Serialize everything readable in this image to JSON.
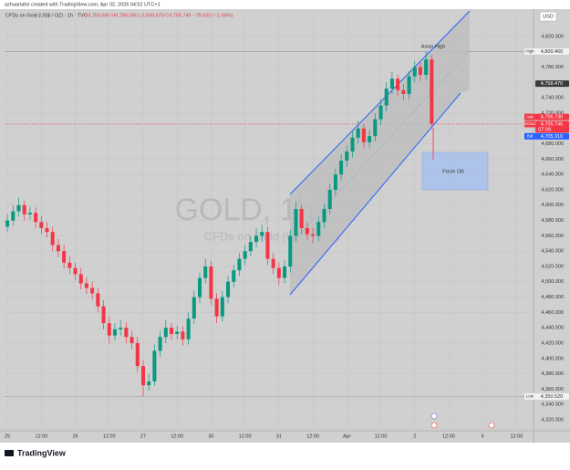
{
  "header": {
    "credit": "azhaartahir created with TradingView.com, Apr 02, 2026 04:52 UTC+1",
    "symbol": "CFDs on Gold (US$ / OZ) · 1h · TVC",
    "ohlc": "O4,784.690 H4,786.580 L4,699.670 C4,705.745 −78.630 (−1.64%)",
    "currency": "USD"
  },
  "footer": {
    "brand": "TradingView"
  },
  "chart_data": {
    "type": "candlestick",
    "watermark": {
      "title": "GOLD, 1h",
      "subtitle": "CFDs on Gold (US$ / OZ)"
    },
    "up_color": "#089981",
    "down_color": "#f23645",
    "open": [
      4572,
      4580,
      4592,
      4600,
      4588,
      4590,
      4578,
      4570,
      4565,
      4548,
      4540,
      4525,
      4518,
      4510,
      4498,
      4492,
      4485,
      4468,
      4446,
      4430,
      4438,
      4440,
      4428,
      4420,
      4390,
      4365,
      4370,
      4410,
      4428,
      4440,
      4432,
      4435,
      4425,
      4452,
      4480,
      4505,
      4520,
      4478,
      4455,
      4480,
      4500,
      4515,
      4530,
      4540,
      4552,
      4560,
      4565,
      4530,
      4518,
      4505,
      4520,
      4560,
      4595,
      4570,
      4562,
      4560,
      4578,
      4595,
      4620,
      4640,
      4658,
      4670,
      4688,
      4700,
      4682,
      4690,
      4712,
      4730,
      4752,
      4765,
      4750,
      4745,
      4768,
      4780,
      4770,
      4790
    ],
    "high": [
      4588,
      4600,
      4610,
      4606,
      4598,
      4597,
      4586,
      4578,
      4572,
      4556,
      4548,
      4533,
      4525,
      4518,
      4506,
      4500,
      4492,
      4476,
      4455,
      4446,
      4450,
      4447,
      4436,
      4428,
      4398,
      4380,
      4418,
      4436,
      4450,
      4446,
      4443,
      4442,
      4460,
      4488,
      4512,
      4530,
      4527,
      4485,
      4488,
      4508,
      4522,
      4538,
      4548,
      4560,
      4570,
      4575,
      4572,
      4538,
      4525,
      4528,
      4568,
      4605,
      4600,
      4578,
      4570,
      4585,
      4602,
      4628,
      4648,
      4666,
      4678,
      4696,
      4710,
      4706,
      4698,
      4720,
      4738,
      4760,
      4774,
      4771,
      4758,
      4775,
      4788,
      4786,
      4800.46,
      4796
    ],
    "low": [
      4565,
      4573,
      4585,
      4580,
      4581,
      4570,
      4562,
      4558,
      4540,
      4532,
      4517,
      4510,
      4502,
      4490,
      4484,
      4477,
      4460,
      4438,
      4420,
      4423,
      4430,
      4420,
      4412,
      4382,
      4350.52,
      4358,
      4364,
      4402,
      4420,
      4424,
      4425,
      4417,
      4418,
      4445,
      4472,
      4498,
      4470,
      4446,
      4448,
      4472,
      4493,
      4508,
      4522,
      4533,
      4545,
      4552,
      4522,
      4510,
      4496,
      4498,
      4512,
      4552,
      4562,
      4555,
      4550,
      4553,
      4570,
      4588,
      4612,
      4632,
      4650,
      4662,
      4680,
      4674,
      4675,
      4683,
      4704,
      4722,
      4745,
      4742,
      4737,
      4738,
      4760,
      4762,
      4763,
      4700
    ],
    "close": [
      4580,
      4592,
      4600,
      4588,
      4590,
      4578,
      4570,
      4565,
      4548,
      4540,
      4525,
      4518,
      4510,
      4498,
      4492,
      4485,
      4468,
      4446,
      4430,
      4438,
      4440,
      4428,
      4420,
      4390,
      4365,
      4370,
      4410,
      4428,
      4440,
      4432,
      4435,
      4425,
      4452,
      4480,
      4505,
      4520,
      4478,
      4455,
      4480,
      4500,
      4515,
      4530,
      4540,
      4552,
      4560,
      4565,
      4530,
      4518,
      4505,
      4520,
      4560,
      4595,
      4570,
      4562,
      4560,
      4578,
      4595,
      4620,
      4640,
      4658,
      4670,
      4688,
      4700,
      4682,
      4690,
      4712,
      4730,
      4752,
      4765,
      4750,
      4745,
      4768,
      4780,
      4770,
      4790,
      4706
    ],
    "xlim": [
      -0.5,
      93
    ],
    "xticks": [
      {
        "value": 0,
        "label": "25"
      },
      {
        "value": 6,
        "label": "12:00"
      },
      {
        "value": 12,
        "label": "26"
      },
      {
        "value": 18,
        "label": "12:00"
      },
      {
        "value": 24,
        "label": "27"
      },
      {
        "value": 30,
        "label": "12:00"
      },
      {
        "value": 36,
        "label": "30"
      },
      {
        "value": 42,
        "label": "12:00"
      },
      {
        "value": 48,
        "label": "31"
      },
      {
        "value": 54,
        "label": "12:00"
      },
      {
        "value": 60,
        "label": "Apr"
      },
      {
        "value": 66,
        "label": "12:00"
      },
      {
        "value": 72,
        "label": "2"
      },
      {
        "value": 78,
        "label": "12:00"
      },
      {
        "value": 84,
        "label": "6"
      },
      {
        "value": 90,
        "label": "12:00"
      }
    ],
    "ylim": [
      4308.1,
      4853.3
    ],
    "yticks": [
      {
        "value": 4320,
        "label": "4,320.000"
      },
      {
        "value": 4340,
        "label": "4,340.000"
      },
      {
        "value": 4360,
        "label": "4,360.000"
      },
      {
        "value": 4380,
        "label": "4,380.000"
      },
      {
        "value": 4400,
        "label": "4,400.000"
      },
      {
        "value": 4420,
        "label": "4,420.000"
      },
      {
        "value": 4440,
        "label": "4,440.000"
      },
      {
        "value": 4460,
        "label": "4,460.000"
      },
      {
        "value": 4480,
        "label": "4,480.000"
      },
      {
        "value": 4500,
        "label": "4,500.000"
      },
      {
        "value": 4520,
        "label": "4,520.000"
      },
      {
        "value": 4540,
        "label": "4,540.000"
      },
      {
        "value": 4560,
        "label": "4,560.000"
      },
      {
        "value": 4580,
        "label": "4,580.000"
      },
      {
        "value": 4600,
        "label": "4,600.000"
      },
      {
        "value": 4620,
        "label": "4,620.000"
      },
      {
        "value": 4640,
        "label": "4,640.000"
      },
      {
        "value": 4660,
        "label": "4,660.000"
      },
      {
        "value": 4680,
        "label": "4,680.000"
      },
      {
        "value": 4700,
        "label": "4,700.000"
      },
      {
        "value": 4720,
        "label": "4,720.000"
      },
      {
        "value": 4740,
        "label": "4,740.000"
      },
      {
        "value": 4760,
        "label": "4,760.000"
      },
      {
        "value": 4780,
        "label": "4,780.000"
      },
      {
        "value": 4800,
        "label": "4,800.000"
      },
      {
        "value": 4820,
        "label": "4,820.000"
      }
    ],
    "grid": true,
    "price_tags": [
      {
        "name": "High",
        "value": 4800.46,
        "label": "4,800.460",
        "color": "#f2f2f2",
        "text_color": "#333333"
      },
      {
        "value": 4758.47,
        "label": "4,758.470",
        "color": "#3a3a3a",
        "text_color": "#ffffff"
      },
      {
        "name": "Ask",
        "value": 4706.73,
        "label": "4,706.730",
        "color": "#f23645",
        "text_color": "#ffffff"
      },
      {
        "name": "GOLD",
        "value": 4705.745,
        "label": "4,705.745",
        "countdown": "07:09",
        "color": "#f23645",
        "text_color": "#ffffff"
      },
      {
        "name": "Bid",
        "value": 4705.31,
        "label": "4,705.310",
        "color": "#2962ff",
        "text_color": "#ffffff"
      },
      {
        "name": "Low",
        "value": 4350.52,
        "label": "4,350.520",
        "color": "#f2f2f2",
        "text_color": "#333333"
      }
    ],
    "annotations": [
      "Asian High",
      "Fresh OB"
    ]
  }
}
